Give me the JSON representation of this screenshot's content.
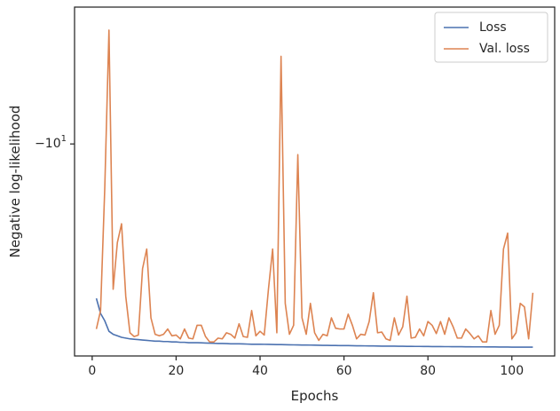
{
  "chart_data": {
    "type": "line",
    "title": "",
    "xlabel": "Epochs",
    "ylabel": "Negative log-likelihood",
    "xlim": [
      -4.2,
      110.2
    ],
    "ylim": [
      -6.7,
      -12.95
    ],
    "y_scale": "symlog",
    "y_tick_value": -10,
    "y_tick_label_base": "−10",
    "y_tick_label_exp": "1",
    "x_ticks": [
      {
        "value": 0,
        "label": "0"
      },
      {
        "value": 20,
        "label": "20"
      },
      {
        "value": 40,
        "label": "40"
      },
      {
        "value": 60,
        "label": "60"
      },
      {
        "value": 80,
        "label": "80"
      },
      {
        "value": 100,
        "label": "100"
      }
    ],
    "grid": false,
    "legend_position": "top-right",
    "series": [
      {
        "name": "Loss",
        "color": "#4c72b0",
        "x": [
          1,
          2,
          3,
          4,
          5,
          6,
          7,
          8,
          9,
          10,
          11,
          12,
          13,
          14,
          15,
          16,
          17,
          18,
          19,
          20,
          21,
          22,
          23,
          24,
          25,
          26,
          27,
          28,
          29,
          30,
          31,
          32,
          33,
          34,
          35,
          36,
          37,
          38,
          39,
          40,
          41,
          42,
          43,
          44,
          45,
          46,
          47,
          48,
          49,
          50,
          51,
          52,
          53,
          54,
          55,
          56,
          57,
          58,
          59,
          60,
          61,
          62,
          63,
          64,
          65,
          66,
          67,
          68,
          69,
          70,
          71,
          72,
          73,
          74,
          75,
          76,
          77,
          78,
          79,
          80,
          81,
          82,
          83,
          84,
          85,
          86,
          87,
          88,
          89,
          90,
          91,
          92,
          93,
          94,
          95,
          96,
          97,
          98,
          99,
          100,
          101,
          102,
          103,
          104,
          105
        ],
        "y": [
          -7.47,
          -7.26,
          -7.16,
          -7.02,
          -6.98,
          -6.96,
          -6.94,
          -6.93,
          -6.92,
          -6.915,
          -6.91,
          -6.905,
          -6.9,
          -6.895,
          -6.89,
          -6.89,
          -6.885,
          -6.885,
          -6.88,
          -6.88,
          -6.875,
          -6.875,
          -6.87,
          -6.87,
          -6.87,
          -6.868,
          -6.866,
          -6.864,
          -6.862,
          -6.86,
          -6.86,
          -6.858,
          -6.856,
          -6.855,
          -6.855,
          -6.854,
          -6.852,
          -6.85,
          -6.85,
          -6.85,
          -6.849,
          -6.848,
          -6.847,
          -6.846,
          -6.845,
          -6.844,
          -6.843,
          -6.842,
          -6.841,
          -6.84,
          -6.84,
          -6.839,
          -6.838,
          -6.837,
          -6.836,
          -6.835,
          -6.834,
          -6.834,
          -6.833,
          -6.832,
          -6.832,
          -6.831,
          -6.83,
          -6.83,
          -6.829,
          -6.828,
          -6.828,
          -6.827,
          -6.826,
          -6.826,
          -6.825,
          -6.825,
          -6.824,
          -6.824,
          -6.823,
          -6.823,
          -6.822,
          -6.822,
          -6.821,
          -6.821,
          -6.82,
          -6.82,
          -6.82,
          -6.819,
          -6.819,
          -6.818,
          -6.818,
          -6.818,
          -6.817,
          -6.817,
          -6.816,
          -6.816,
          -6.816,
          -6.815,
          -6.815,
          -6.815,
          -6.814,
          -6.814,
          -6.814,
          -6.813,
          -6.813,
          -6.813,
          -6.812,
          -6.812,
          -6.812
        ]
      },
      {
        "name": "Val. loss",
        "color": "#dd8452",
        "x": [
          1,
          2,
          3,
          4,
          5,
          6,
          7,
          8,
          9,
          10,
          11,
          12,
          13,
          14,
          15,
          16,
          17,
          18,
          19,
          20,
          21,
          22,
          23,
          24,
          25,
          26,
          27,
          28,
          29,
          30,
          31,
          32,
          33,
          34,
          35,
          36,
          37,
          38,
          39,
          40,
          41,
          42,
          43,
          44,
          45,
          46,
          47,
          48,
          49,
          50,
          51,
          52,
          53,
          54,
          55,
          56,
          57,
          58,
          59,
          60,
          61,
          62,
          63,
          64,
          65,
          66,
          67,
          68,
          69,
          70,
          71,
          72,
          73,
          74,
          75,
          76,
          77,
          78,
          79,
          80,
          81,
          82,
          83,
          84,
          85,
          86,
          87,
          88,
          89,
          90,
          91,
          92,
          93,
          94,
          95,
          96,
          97,
          98,
          99,
          100,
          101,
          102,
          103,
          104,
          105
        ],
        "y": [
          -7.05,
          -7.3,
          -9.2,
          -12.4,
          -7.6,
          -8.3,
          -8.6,
          -7.5,
          -7.0,
          -6.95,
          -6.97,
          -7.9,
          -8.2,
          -7.2,
          -6.98,
          -6.96,
          -6.98,
          -7.05,
          -6.96,
          -6.97,
          -6.92,
          -7.05,
          -6.93,
          -6.92,
          -7.1,
          -7.1,
          -6.95,
          -6.88,
          -6.88,
          -6.93,
          -6.92,
          -7.0,
          -6.98,
          -6.93,
          -7.12,
          -6.95,
          -6.94,
          -7.3,
          -6.96,
          -7.02,
          -6.97,
          -7.6,
          -8.2,
          -7.0,
          -11.8,
          -7.4,
          -6.98,
          -7.1,
          -9.8,
          -7.2,
          -6.98,
          -7.4,
          -7.0,
          -6.9,
          -6.98,
          -6.96,
          -7.2,
          -7.06,
          -7.05,
          -7.05,
          -7.25,
          -7.1,
          -6.92,
          -6.98,
          -6.97,
          -7.15,
          -7.55,
          -7.0,
          -7.01,
          -6.92,
          -6.9,
          -7.2,
          -6.97,
          -7.08,
          -7.5,
          -6.93,
          -6.94,
          -7.05,
          -6.96,
          -7.15,
          -7.1,
          -6.99,
          -7.15,
          -6.98,
          -7.2,
          -7.08,
          -6.93,
          -6.93,
          -7.05,
          -6.99,
          -6.92,
          -6.96,
          -6.88,
          -6.88,
          -7.3,
          -6.98,
          -7.1,
          -8.2,
          -8.45,
          -6.92,
          -7.0,
          -7.4,
          -7.35,
          -6.92,
          -7.55
        ]
      }
    ]
  }
}
